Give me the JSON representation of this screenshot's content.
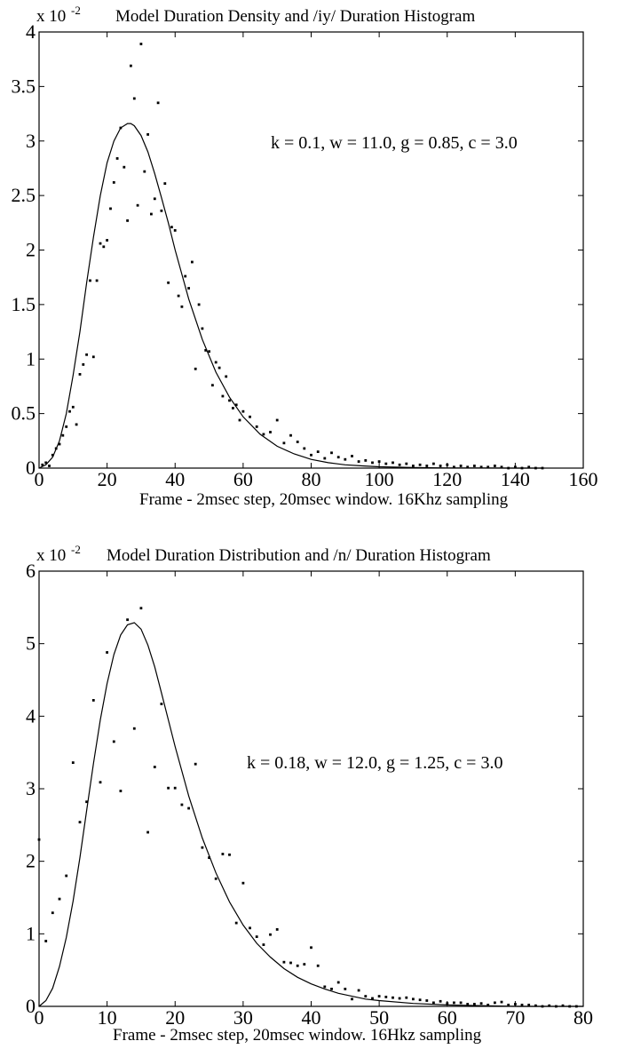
{
  "chart_data": [
    {
      "type": "scatter",
      "title": "Model Duration Density and /iy/ Duration Histogram",
      "xlabel": "Frame - 2msec step, 20msec window. 16Khz sampling",
      "ylabel": "",
      "y_scale_prefix": "x 10",
      "y_scale_exponent": "-2",
      "annotation": "k = 0.1, w = 11.0, g = 0.85, c = 3.0",
      "xlim": [
        0,
        160
      ],
      "ylim": [
        0,
        4
      ],
      "xticks": [
        "0",
        "20",
        "40",
        "60",
        "80",
        "100",
        "120",
        "140",
        "160"
      ],
      "yticks": [
        "0",
        "0.5",
        "1",
        "1.5",
        "2",
        "2.5",
        "3",
        "3.5",
        "4"
      ],
      "grid": false,
      "series": [
        {
          "kind": "line",
          "x": [
            0,
            2,
            4,
            6,
            8,
            10,
            12,
            14,
            16,
            18,
            20,
            22,
            24,
            26,
            27,
            28,
            30,
            32,
            34,
            36,
            38,
            40,
            44,
            48,
            52,
            56,
            60,
            65,
            70,
            75,
            80,
            85,
            90,
            95,
            100,
            110,
            120,
            130,
            140,
            148
          ],
          "y": [
            0.0,
            0.03,
            0.1,
            0.25,
            0.5,
            0.85,
            1.25,
            1.7,
            2.12,
            2.5,
            2.8,
            3.0,
            3.12,
            3.16,
            3.16,
            3.14,
            3.05,
            2.9,
            2.7,
            2.48,
            2.25,
            2.0,
            1.55,
            1.18,
            0.88,
            0.65,
            0.47,
            0.31,
            0.2,
            0.13,
            0.08,
            0.05,
            0.03,
            0.02,
            0.012,
            0.005,
            0.002,
            0.001,
            0.0,
            0.0
          ]
        },
        {
          "kind": "points",
          "x": [
            1,
            2,
            3,
            4,
            5,
            6,
            7,
            8,
            9,
            10,
            11,
            12,
            13,
            14,
            15,
            16,
            17,
            18,
            19,
            20,
            21,
            22,
            23,
            24,
            25,
            26,
            27,
            28,
            29,
            30,
            31,
            32,
            33,
            34,
            35,
            36,
            37,
            38,
            39,
            40,
            41,
            42,
            43,
            44,
            45,
            46,
            47,
            48,
            49,
            50,
            51,
            52,
            53,
            54,
            55,
            56,
            57,
            58,
            59,
            60,
            62,
            64,
            66,
            68,
            70,
            72,
            74,
            76,
            78,
            80,
            82,
            84,
            86,
            88,
            90,
            92,
            94,
            96,
            98,
            100,
            102,
            104,
            106,
            108,
            110,
            112,
            114,
            116,
            118,
            120,
            122,
            124,
            126,
            128,
            130,
            132,
            134,
            136,
            138,
            140,
            142,
            144,
            146,
            148
          ],
          "y": [
            0.03,
            0.05,
            0.02,
            0.12,
            0.18,
            0.22,
            0.3,
            0.38,
            0.52,
            0.56,
            0.4,
            0.86,
            0.95,
            1.04,
            1.72,
            1.02,
            1.72,
            2.06,
            2.03,
            2.09,
            2.38,
            2.62,
            2.84,
            3.12,
            2.76,
            2.27,
            3.69,
            3.39,
            2.41,
            3.89,
            2.72,
            3.06,
            2.33,
            2.47,
            3.35,
            2.36,
            2.61,
            1.7,
            2.21,
            2.18,
            1.58,
            1.48,
            1.76,
            1.65,
            1.89,
            0.91,
            1.5,
            1.28,
            1.08,
            1.07,
            0.76,
            0.97,
            0.92,
            0.66,
            0.84,
            0.62,
            0.55,
            0.58,
            0.44,
            0.52,
            0.47,
            0.38,
            0.31,
            0.33,
            0.44,
            0.23,
            0.3,
            0.24,
            0.18,
            0.12,
            0.15,
            0.09,
            0.14,
            0.1,
            0.08,
            0.11,
            0.06,
            0.07,
            0.05,
            0.06,
            0.04,
            0.05,
            0.03,
            0.04,
            0.02,
            0.03,
            0.02,
            0.04,
            0.02,
            0.03,
            0.01,
            0.02,
            0.01,
            0.02,
            0.01,
            0.01,
            0.02,
            0.01,
            0.0,
            0.01,
            0.0,
            0.01,
            0.0,
            0.0
          ]
        }
      ]
    },
    {
      "type": "scatter",
      "title": "Model Duration Distribution and /n/ Duration Histogram",
      "xlabel": "Frame - 2msec step, 20msec window. 16Hkz sampling",
      "ylabel": "",
      "y_scale_prefix": "x 10",
      "y_scale_exponent": "-2",
      "annotation": "k = 0.18, w = 12.0, g = 1.25, c = 3.0",
      "xlim": [
        0,
        80
      ],
      "ylim": [
        0,
        6
      ],
      "xticks": [
        "0",
        "10",
        "20",
        "30",
        "40",
        "50",
        "60",
        "70",
        "80"
      ],
      "yticks": [
        "0",
        "1",
        "2",
        "3",
        "4",
        "5",
        "6"
      ],
      "grid": false,
      "series": [
        {
          "kind": "line",
          "x": [
            0,
            1,
            2,
            3,
            4,
            5,
            6,
            7,
            8,
            9,
            10,
            11,
            12,
            13,
            14,
            15,
            16,
            17,
            18,
            19,
            20,
            22,
            24,
            26,
            28,
            30,
            32,
            34,
            36,
            38,
            40,
            42,
            44,
            46,
            48,
            50,
            55,
            60,
            65,
            70,
            75,
            80
          ],
          "y": [
            0.0,
            0.08,
            0.25,
            0.55,
            0.95,
            1.45,
            2.05,
            2.7,
            3.35,
            3.95,
            4.45,
            4.85,
            5.12,
            5.26,
            5.29,
            5.2,
            4.98,
            4.68,
            4.32,
            3.95,
            3.58,
            2.9,
            2.32,
            1.84,
            1.44,
            1.12,
            0.87,
            0.68,
            0.52,
            0.4,
            0.31,
            0.24,
            0.18,
            0.14,
            0.1,
            0.08,
            0.04,
            0.02,
            0.01,
            0.0,
            0.0,
            0.0
          ]
        },
        {
          "kind": "points",
          "x": [
            0,
            1,
            2,
            3,
            4,
            5,
            6,
            7,
            8,
            9,
            10,
            11,
            12,
            13,
            14,
            15,
            16,
            17,
            18,
            19,
            20,
            21,
            22,
            23,
            24,
            25,
            26,
            27,
            28,
            29,
            30,
            31,
            32,
            33,
            34,
            35,
            36,
            37,
            38,
            39,
            40,
            41,
            42,
            43,
            44,
            45,
            46,
            47,
            48,
            49,
            50,
            51,
            52,
            53,
            54,
            55,
            56,
            57,
            58,
            59,
            60,
            61,
            62,
            63,
            64,
            65,
            66,
            67,
            68,
            69,
            70,
            71,
            72,
            73,
            74,
            75,
            76,
            77,
            78,
            79
          ],
          "y": [
            2.3,
            0.9,
            1.29,
            1.48,
            1.8,
            3.36,
            2.54,
            2.82,
            4.22,
            3.09,
            4.88,
            3.65,
            2.97,
            5.33,
            3.83,
            5.49,
            2.4,
            3.3,
            4.17,
            3.01,
            3.01,
            2.78,
            2.73,
            3.34,
            2.19,
            2.05,
            1.76,
            2.1,
            2.09,
            1.15,
            1.7,
            1.08,
            0.96,
            0.85,
            0.99,
            1.06,
            0.61,
            0.6,
            0.56,
            0.58,
            0.81,
            0.56,
            0.27,
            0.24,
            0.33,
            0.24,
            0.1,
            0.22,
            0.14,
            0.11,
            0.14,
            0.13,
            0.12,
            0.11,
            0.12,
            0.1,
            0.09,
            0.08,
            0.05,
            0.07,
            0.04,
            0.05,
            0.05,
            0.03,
            0.03,
            0.04,
            0.02,
            0.05,
            0.06,
            0.02,
            0.03,
            0.02,
            0.02,
            0.01,
            0.0,
            0.01,
            0.0,
            0.01,
            0.0,
            0.0
          ]
        }
      ]
    }
  ]
}
